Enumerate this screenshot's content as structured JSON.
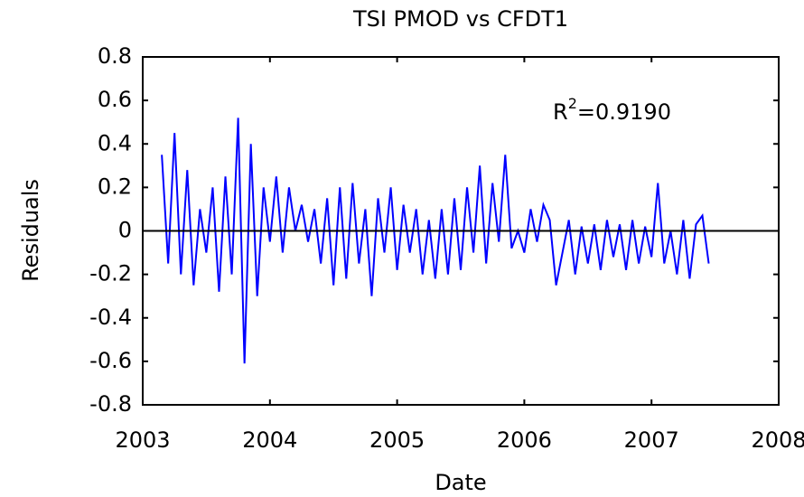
{
  "chart_data": {
    "type": "line",
    "title": "TSI PMOD vs CFDT1",
    "xlabel": "Date",
    "ylabel": "Residuals",
    "annotation": {
      "base": "R",
      "sup": "2",
      "rest": "=0.9190"
    },
    "hline": 0,
    "xlim": [
      2003,
      2008
    ],
    "xticks": [
      2003,
      2004,
      2005,
      2006,
      2007,
      2008
    ],
    "ylim": [
      -0.8,
      0.8
    ],
    "yticks": [
      -0.8,
      -0.6,
      -0.4,
      -0.2,
      0,
      0.2,
      0.4,
      0.6,
      0.8
    ],
    "x": [
      2003.15,
      2003.2,
      2003.25,
      2003.3,
      2003.35,
      2003.4,
      2003.45,
      2003.5,
      2003.55,
      2003.6,
      2003.65,
      2003.7,
      2003.75,
      2003.8,
      2003.85,
      2003.9,
      2003.95,
      2004,
      2004.05,
      2004.1,
      2004.15,
      2004.2,
      2004.25,
      2004.3,
      2004.35,
      2004.4,
      2004.45,
      2004.5,
      2004.55,
      2004.6,
      2004.65,
      2004.7,
      2004.75,
      2004.8,
      2004.85,
      2004.9,
      2004.95,
      2005,
      2005.05,
      2005.1,
      2005.15,
      2005.2,
      2005.25,
      2005.3,
      2005.35,
      2005.4,
      2005.45,
      2005.5,
      2005.55,
      2005.6,
      2005.65,
      2005.7,
      2005.75,
      2005.8,
      2005.85,
      2005.9,
      2005.95,
      2006,
      2006.05,
      2006.1,
      2006.15,
      2006.2,
      2006.25,
      2006.3,
      2006.35,
      2006.4,
      2006.45,
      2006.5,
      2006.55,
      2006.6,
      2006.65,
      2006.7,
      2006.75,
      2006.8,
      2006.85,
      2006.9,
      2006.95,
      2007,
      2007.05,
      2007.1,
      2007.15,
      2007.2,
      2007.25,
      2007.3,
      2007.35,
      2007.4,
      2007.45
    ],
    "series": [
      {
        "name": "Residuals",
        "color": "#0000ff",
        "values": [
          0.35,
          -0.15,
          0.45,
          -0.2,
          0.28,
          -0.25,
          0.1,
          -0.1,
          0.2,
          -0.28,
          0.25,
          -0.2,
          0.52,
          -0.61,
          0.4,
          -0.3,
          0.2,
          -0.05,
          0.25,
          -0.1,
          0.2,
          0,
          0.12,
          -0.05,
          0.1,
          -0.15,
          0.15,
          -0.25,
          0.2,
          -0.22,
          0.22,
          -0.15,
          0.1,
          -0.3,
          0.15,
          -0.1,
          0.2,
          -0.18,
          0.12,
          -0.1,
          0.1,
          -0.2,
          0.05,
          -0.22,
          0.1,
          -0.2,
          0.15,
          -0.18,
          0.2,
          -0.1,
          0.3,
          -0.15,
          0.22,
          -0.05,
          0.35,
          -0.08,
          0,
          -0.1,
          0.1,
          -0.05,
          0.12,
          0.05,
          -0.25,
          -0.1,
          0.05,
          -0.2,
          0.02,
          -0.15,
          0.03,
          -0.18,
          0.05,
          -0.12,
          0.03,
          -0.18,
          0.05,
          -0.15,
          0.02,
          -0.12,
          0.22,
          -0.15,
          0,
          -0.2,
          0.05,
          -0.22,
          0.03,
          0.07,
          -0.15
        ]
      }
    ]
  }
}
